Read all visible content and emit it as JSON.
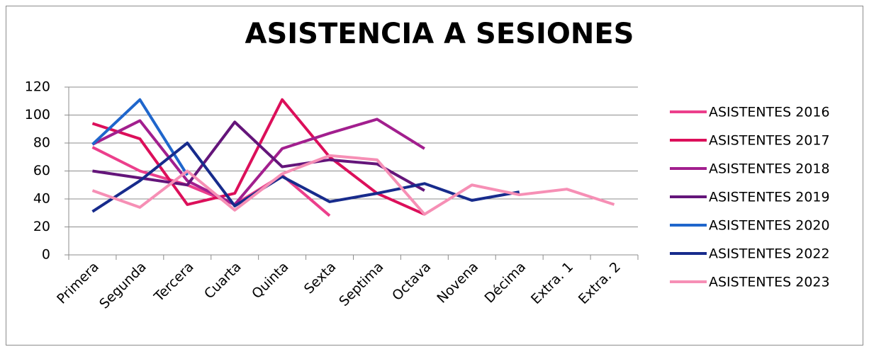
{
  "chart_data": {
    "type": "line",
    "title": "ASISTENCIA A SESIONES",
    "categories": [
      "Primera",
      "Segunda",
      "Tercera",
      "Cuarta",
      "Quinta",
      "Sexta",
      "Septima",
      "Octava",
      "Novena",
      "Décima",
      "Extra. 1",
      "Extra. 2"
    ],
    "series": [
      {
        "name": "ASISTENTES 2016",
        "color": "#ec3f8c",
        "values": [
          77,
          60,
          50,
          36,
          57,
          28,
          null,
          null,
          null,
          null,
          null,
          null
        ]
      },
      {
        "name": "ASISTENTES 2017",
        "color": "#dc0f5a",
        "values": [
          94,
          83,
          36,
          44,
          111,
          70,
          44,
          29,
          null,
          null,
          null,
          null
        ]
      },
      {
        "name": "ASISTENTES 2018",
        "color": "#a21f8e",
        "values": [
          79,
          96,
          53,
          36,
          76,
          87,
          97,
          76,
          null,
          null,
          null,
          null
        ]
      },
      {
        "name": "ASISTENTES 2019",
        "color": "#64157a",
        "values": [
          60,
          55,
          50,
          95,
          63,
          68,
          65,
          46,
          null,
          null,
          null,
          null
        ]
      },
      {
        "name": "ASISTENTES 2020",
        "color": "#1f66cc",
        "values": [
          79,
          111,
          57,
          null,
          null,
          null,
          null,
          null,
          null,
          null,
          null,
          null
        ]
      },
      {
        "name": "ASISTENTES 2022",
        "color": "#172b8c",
        "values": [
          31,
          53,
          80,
          35,
          56,
          38,
          44,
          51,
          39,
          45,
          null,
          null
        ]
      },
      {
        "name": "ASISTENTES 2023",
        "color": "#f68fb5",
        "values": [
          46,
          34,
          60,
          32,
          58,
          71,
          68,
          29,
          50,
          43,
          47,
          36
        ]
      }
    ],
    "ylim": [
      0,
      120
    ],
    "yticks": [
      0,
      20,
      40,
      60,
      80,
      100,
      120
    ],
    "grid": true,
    "legend": "right"
  }
}
